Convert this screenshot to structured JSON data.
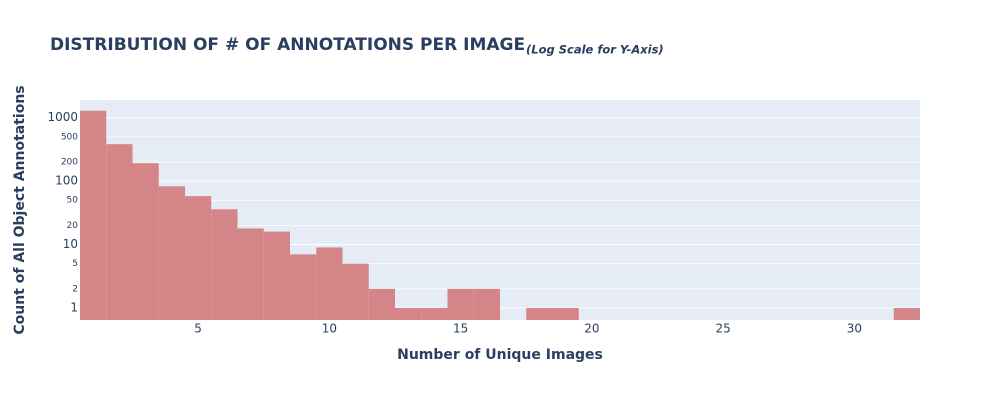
{
  "chart_data": {
    "type": "histogram",
    "title": "DISTRIBUTION OF # OF ANNOTATIONS PER IMAGE",
    "subtitle": "(Log Scale for Y-Axis)",
    "x_label": "Number of Unique Images",
    "y_label": "Count of All Object Annotations",
    "bins": [
      0.5,
      1.5,
      2.5,
      3.5,
      4.5,
      5.5,
      6.5,
      7.5,
      8.5,
      9.5,
      10.5,
      11.5,
      12.5,
      13.5,
      14.5,
      15.5,
      16.5,
      17.5,
      18.5,
      19.5,
      20.5,
      21.5,
      22.5,
      23.5,
      24.5,
      25.5,
      26.5,
      27.5,
      28.5,
      29.5,
      30.5,
      31.5,
      32.5
    ],
    "values": [
      1290,
      383,
      192,
      83,
      58,
      36,
      18,
      16,
      7,
      9,
      5,
      2,
      1,
      1,
      2,
      2,
      0,
      1,
      1,
      0,
      0,
      0,
      0,
      0,
      0,
      0,
      0,
      0,
      0,
      0,
      0,
      1
    ],
    "color": "#d48587",
    "xlim": [
      0.5,
      32.5
    ],
    "xticks": [
      5,
      10,
      15,
      20,
      25,
      30
    ],
    "ylim": [
      0.646,
      1905
    ],
    "yticks": [
      1,
      2,
      5,
      10,
      20,
      50,
      100,
      200,
      500,
      1000
    ],
    "log_y": true,
    "grid": true
  }
}
